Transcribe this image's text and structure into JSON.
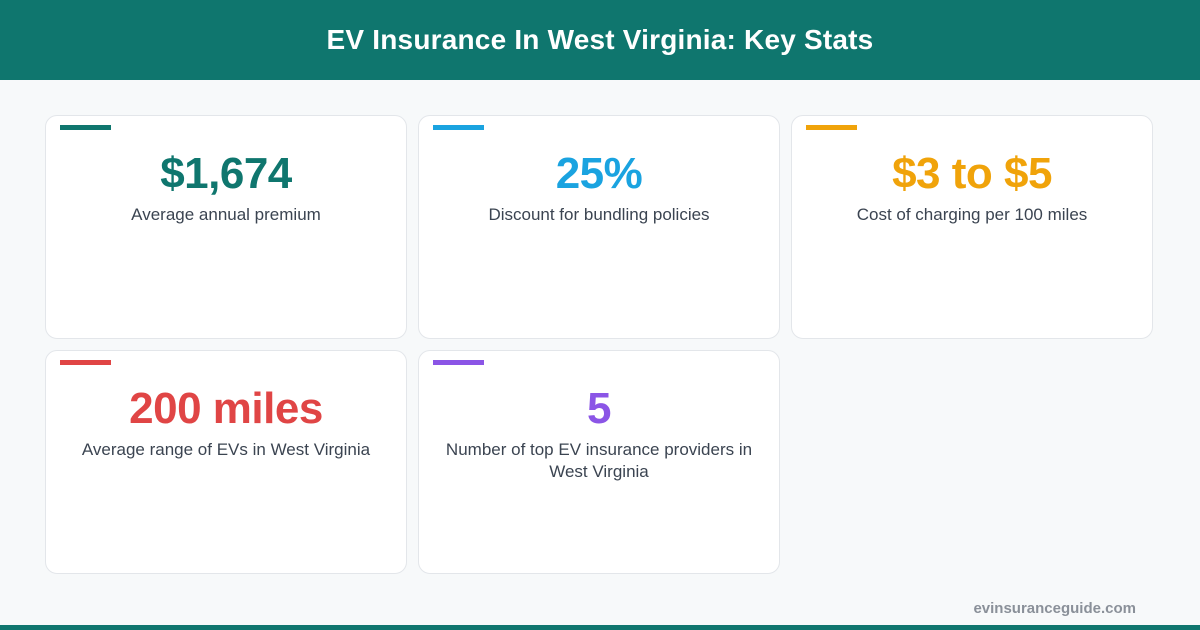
{
  "header": {
    "title": "EV Insurance In West Virginia: Key Stats"
  },
  "colors": {
    "brand": "#0f766e",
    "blue": "#1aa3e0",
    "orange": "#f0a30a",
    "red": "#e04545",
    "purple": "#8b55e6"
  },
  "stats": [
    {
      "value": "$1,674",
      "label": "Average annual premium"
    },
    {
      "value": "25%",
      "label": "Discount for bundling policies"
    },
    {
      "value": "$3 to $5",
      "label": "Cost of charging per 100 miles"
    },
    {
      "value": "200 miles",
      "label": "Average range of EVs in West Virginia"
    },
    {
      "value": "5",
      "label": "Number of top EV insurance providers in West Virginia"
    }
  ],
  "footer": {
    "site": "evinsuranceguide.com"
  }
}
